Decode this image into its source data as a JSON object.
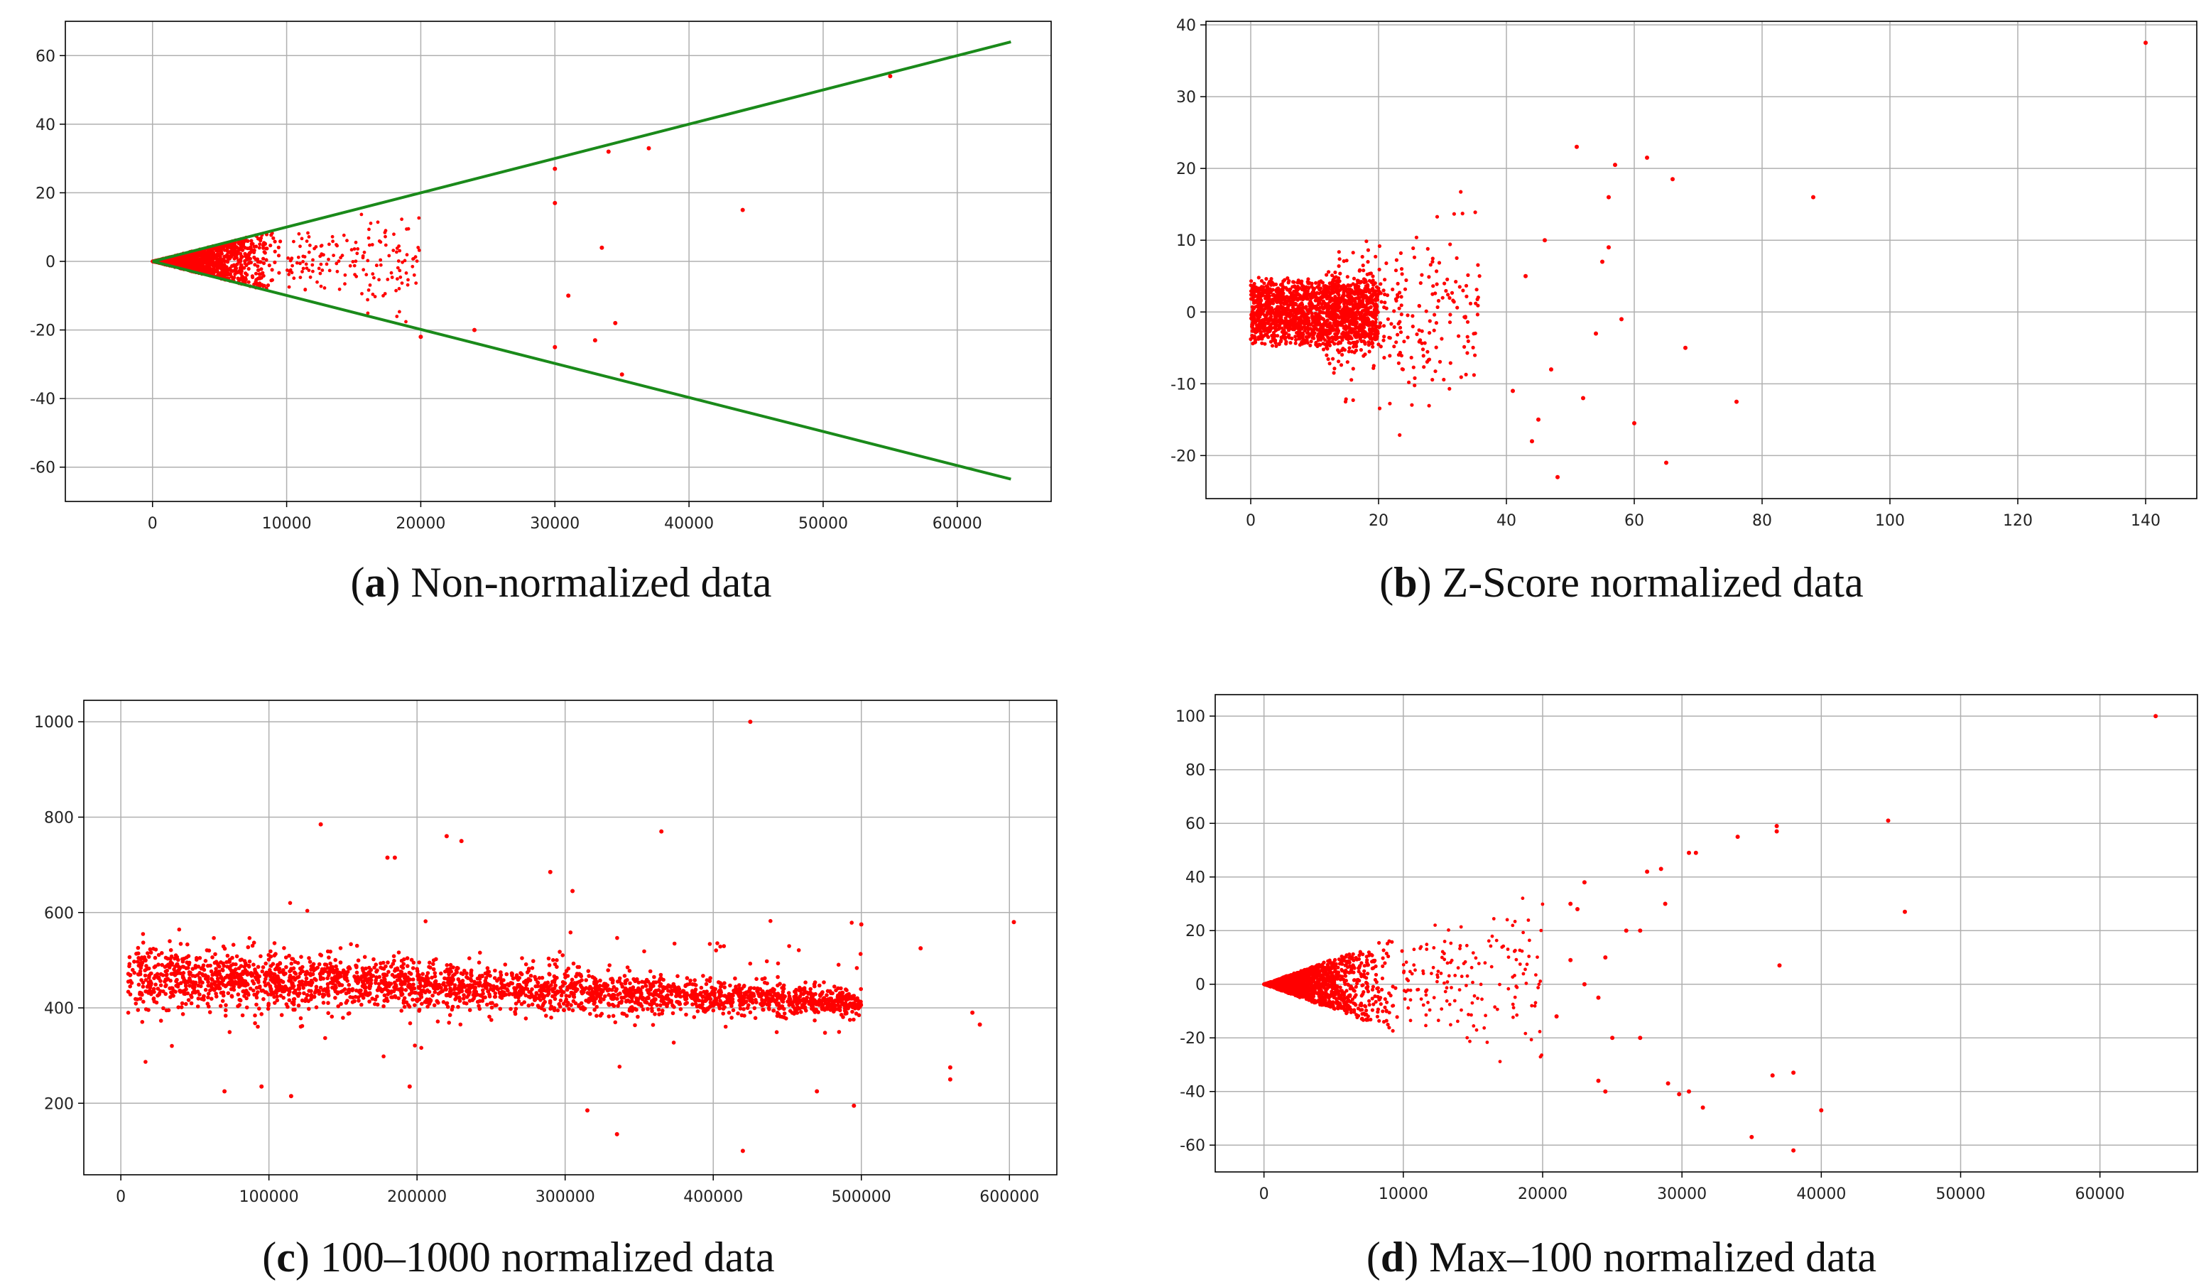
{
  "figure": {
    "panels": [
      {
        "id": "a",
        "letter": "a",
        "caption": "Non-normalized data"
      },
      {
        "id": "b",
        "letter": "b",
        "caption": "Z-Score normalized data"
      },
      {
        "id": "c",
        "letter": "c",
        "caption": "100–1000 normalized data"
      },
      {
        "id": "d",
        "letter": "d",
        "caption": "Max–100 normalized data"
      }
    ]
  },
  "colors": {
    "points": "#ff0000",
    "fit_lines": "#1a8a1a",
    "grid": "#b0b0b0",
    "axes": "#000000"
  },
  "chart_data": [
    {
      "id": "a",
      "type": "scatter",
      "title": "",
      "xlabel": "",
      "ylabel": "",
      "xlim": [
        -6500,
        67000
      ],
      "ylim": [
        -70,
        70
      ],
      "xticks": [
        0,
        10000,
        20000,
        30000,
        40000,
        50000,
        60000
      ],
      "yticks": [
        -60,
        -40,
        -20,
        0,
        20,
        40,
        60
      ],
      "grid": true,
      "cluster": {
        "x_max": 10000,
        "x_sparse_max": 20000,
        "slope": 0.001
      },
      "outliers": [
        [
          55000,
          54
        ],
        [
          44000,
          15
        ],
        [
          37000,
          33
        ],
        [
          34000,
          32
        ],
        [
          30000,
          27
        ],
        [
          30000,
          17
        ],
        [
          33500,
          4
        ],
        [
          34500,
          -18
        ],
        [
          33000,
          -23
        ],
        [
          30000,
          -25
        ],
        [
          31000,
          -10
        ],
        [
          35000,
          -33
        ],
        [
          20000,
          -22
        ],
        [
          24000,
          -20
        ]
      ],
      "lines": [
        {
          "name": "upper bound",
          "x": [
            0,
            64000
          ],
          "y": [
            0,
            64
          ]
        },
        {
          "name": "lower bound",
          "x": [
            0,
            64000
          ],
          "y": [
            0,
            -63.5
          ]
        }
      ]
    },
    {
      "id": "b",
      "type": "scatter",
      "title": "",
      "xlabel": "",
      "ylabel": "",
      "xlim": [
        -7,
        148
      ],
      "ylim": [
        -26,
        40.5
      ],
      "xticks": [
        0,
        20,
        40,
        60,
        80,
        100,
        120,
        140
      ],
      "yticks": [
        -20,
        -10,
        0,
        10,
        20,
        30,
        40
      ],
      "grid": true,
      "cluster": {
        "x_max": 20,
        "x_sparse_max": 36,
        "y_spread": 5
      },
      "outliers": [
        [
          140,
          37.5
        ],
        [
          88,
          16
        ],
        [
          76,
          -12.5
        ],
        [
          68,
          -5
        ],
        [
          66,
          18.5
        ],
        [
          65,
          -21
        ],
        [
          62,
          21.5
        ],
        [
          60,
          -15.5
        ],
        [
          57,
          20.5
        ],
        [
          56,
          16
        ],
        [
          56,
          9
        ],
        [
          51,
          23
        ],
        [
          48,
          -23
        ],
        [
          45,
          -15
        ],
        [
          44,
          -18
        ],
        [
          43,
          5
        ],
        [
          47,
          -8
        ],
        [
          46,
          10
        ],
        [
          41,
          -11
        ],
        [
          55,
          7
        ],
        [
          58,
          -1
        ],
        [
          54,
          -3
        ],
        [
          52,
          -12
        ]
      ]
    },
    {
      "id": "c",
      "type": "scatter",
      "title": "",
      "xlabel": "",
      "ylabel": "",
      "xlim": [
        -25000,
        632000
      ],
      "ylim": [
        50,
        1045
      ],
      "xticks": [
        0,
        100000,
        200000,
        300000,
        400000,
        500000,
        600000
      ],
      "yticks": [
        200,
        400,
        600,
        800,
        1000
      ],
      "grid": true,
      "band": {
        "x_start": 5000,
        "x_end": 500000,
        "center_start": 470,
        "center_end": 410
      },
      "outliers": [
        [
          425000,
          1000
        ],
        [
          135000,
          785
        ],
        [
          220000,
          760
        ],
        [
          230000,
          750
        ],
        [
          365000,
          770
        ],
        [
          180000,
          715
        ],
        [
          185000,
          715
        ],
        [
          290000,
          685
        ],
        [
          305000,
          645
        ],
        [
          603000,
          580
        ],
        [
          575000,
          390
        ],
        [
          580000,
          365
        ],
        [
          560000,
          275
        ],
        [
          560000,
          250
        ],
        [
          495000,
          195
        ],
        [
          420000,
          100
        ],
        [
          335000,
          135
        ],
        [
          315000,
          185
        ],
        [
          115000,
          215
        ],
        [
          70000,
          225
        ],
        [
          95000,
          235
        ],
        [
          195000,
          235
        ],
        [
          470000,
          225
        ],
        [
          540000,
          525
        ],
        [
          500000,
          575
        ]
      ]
    },
    {
      "id": "d",
      "type": "scatter",
      "title": "",
      "xlabel": "",
      "ylabel": "",
      "xlim": [
        -3500,
        67000
      ],
      "ylim": [
        -70,
        108
      ],
      "xticks": [
        0,
        10000,
        20000,
        30000,
        40000,
        50000,
        60000
      ],
      "yticks": [
        -60,
        -40,
        -20,
        0,
        20,
        40,
        60,
        80,
        100
      ],
      "grid": true,
      "cluster": {
        "x_max": 10000,
        "x_sparse_max": 20000,
        "slope": 0.0019
      },
      "outliers": [
        [
          64000,
          100
        ],
        [
          44800,
          61
        ],
        [
          36800,
          59
        ],
        [
          36800,
          57
        ],
        [
          34000,
          55
        ],
        [
          37000,
          7
        ],
        [
          46000,
          27
        ],
        [
          40000,
          -47
        ],
        [
          38000,
          -33
        ],
        [
          38000,
          -62
        ],
        [
          36500,
          -34
        ],
        [
          35000,
          -57
        ],
        [
          31500,
          -46
        ],
        [
          30500,
          -40
        ],
        [
          29800,
          -41
        ],
        [
          29000,
          -37
        ],
        [
          30500,
          49
        ],
        [
          31000,
          49
        ],
        [
          28500,
          43
        ],
        [
          27500,
          42
        ],
        [
          27000,
          20
        ],
        [
          28800,
          30
        ],
        [
          24500,
          10
        ],
        [
          24500,
          -40
        ],
        [
          24000,
          -36
        ],
        [
          24000,
          -5
        ],
        [
          23000,
          38
        ],
        [
          22500,
          28
        ],
        [
          22000,
          30
        ],
        [
          21000,
          -12
        ],
        [
          22000,
          9
        ],
        [
          23000,
          0
        ],
        [
          26000,
          20
        ],
        [
          25000,
          -20
        ],
        [
          27000,
          -20
        ]
      ]
    }
  ]
}
